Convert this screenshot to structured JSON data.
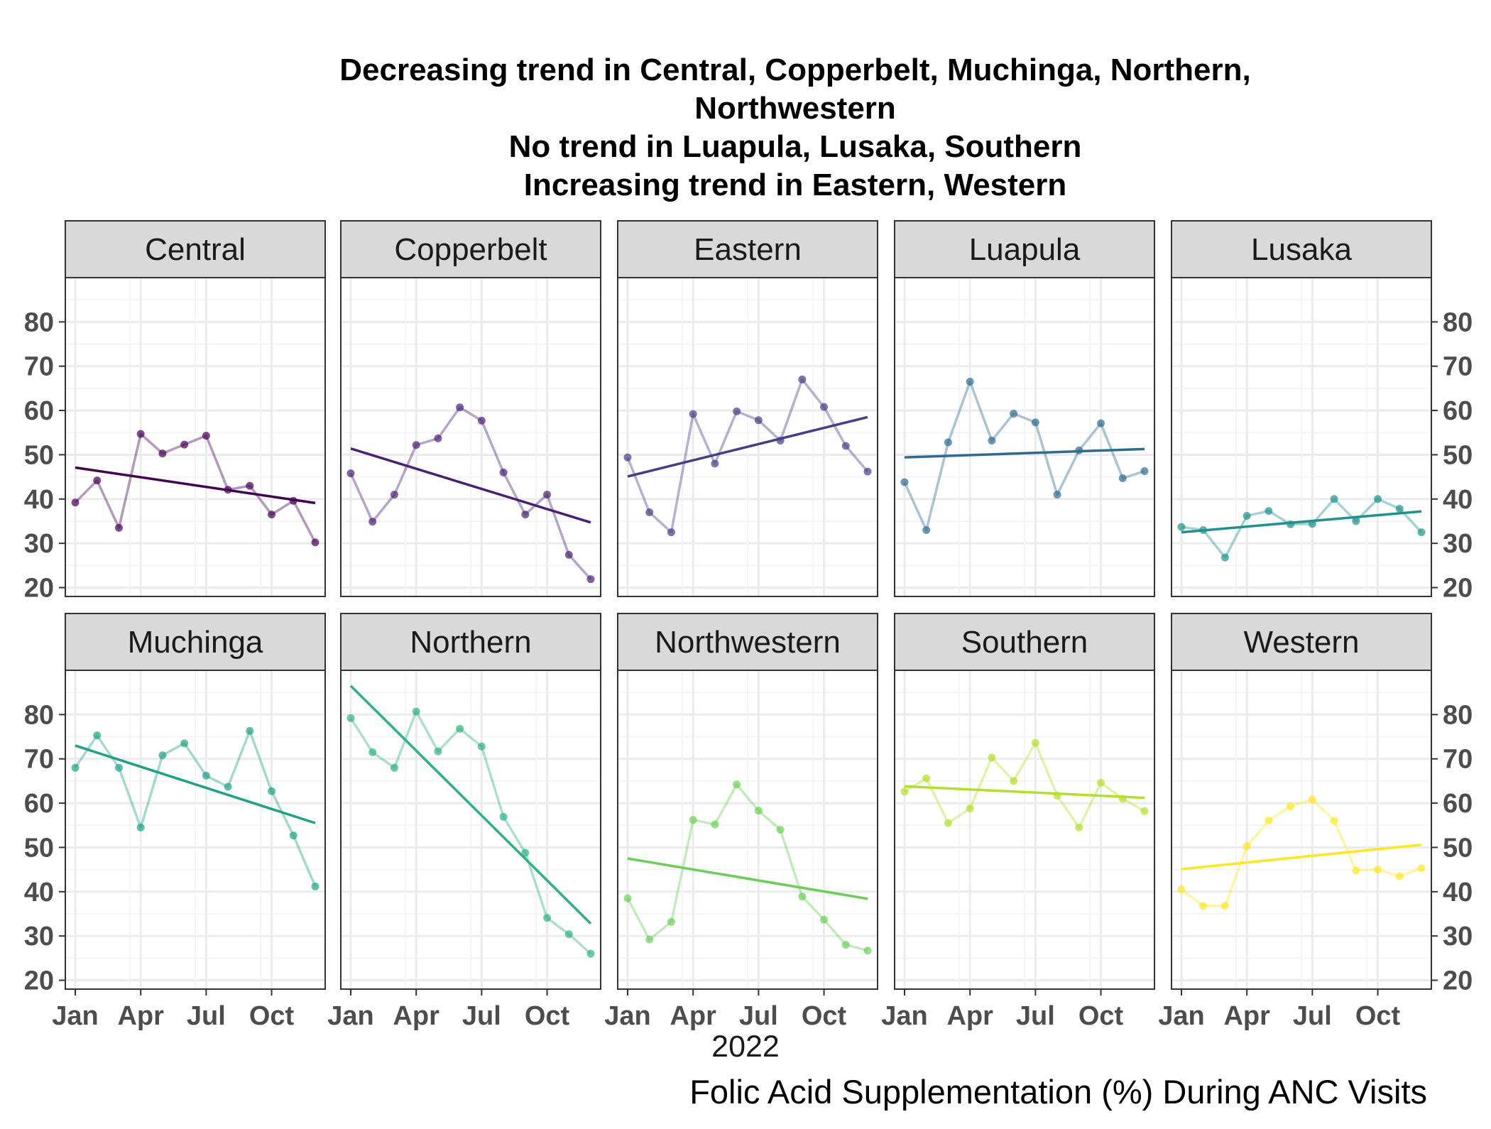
{
  "title_lines": [
    "Decreasing trend in Central, Copperbelt, Muchinga, Northern,",
    "Northwestern",
    "No trend in Luapula, Lusaka, Southern",
    "Increasing trend in Eastern, Western"
  ],
  "caption": "Folic Acid Supplementation (%) During ANC Visits",
  "chart_data": {
    "type": "line",
    "title": "Decreasing trend in Central, Copperbelt, Muchinga, Northern, Northwestern / No trend in Luapula, Lusaka, Southern / Increasing trend in Eastern, Western",
    "xlabel": "2022",
    "ylabel": "",
    "x": [
      "2022-01",
      "2022-02",
      "2022-03",
      "2022-04",
      "2022-05",
      "2022-06",
      "2022-07",
      "2022-08",
      "2022-09",
      "2022-10",
      "2022-11",
      "2022-12"
    ],
    "x_tick_labels": [
      "Jan",
      "Apr",
      "Jul",
      "Oct"
    ],
    "x_tick_months": [
      1,
      4,
      7,
      10
    ],
    "ylim": [
      18,
      90
    ],
    "y_ticks": [
      20,
      30,
      40,
      50,
      60,
      70,
      80
    ],
    "grid": true,
    "layout": "facets, 2 rows x 5 columns",
    "panels": [
      {
        "name": "Central",
        "color": "#440154",
        "values": [
          39.2,
          44.2,
          33.5,
          54.7,
          50.3,
          52.3,
          54.3,
          42.1,
          43.0,
          36.5,
          39.6,
          30.2
        ],
        "trend": [
          47.1,
          39.1
        ]
      },
      {
        "name": "Copperbelt",
        "color": "#482173",
        "values": [
          45.8,
          34.9,
          41.0,
          52.2,
          53.7,
          60.7,
          57.7,
          46.0,
          36.5,
          41.0,
          27.4,
          21.9
        ],
        "trend": [
          51.4,
          34.7
        ]
      },
      {
        "name": "Eastern",
        "color": "#433E85",
        "values": [
          49.4,
          37.0,
          32.5,
          59.2,
          48.0,
          59.8,
          57.8,
          53.2,
          67.0,
          60.8,
          52.0,
          46.2
        ],
        "trend": [
          45.1,
          58.5
        ]
      },
      {
        "name": "Luapula",
        "color": "#2F6B8E",
        "values": [
          43.8,
          33.0,
          52.8,
          66.5,
          53.2,
          59.3,
          57.3,
          41.0,
          51.0,
          57.1,
          44.7,
          46.3
        ],
        "trend": [
          49.4,
          51.3
        ]
      },
      {
        "name": "Lusaka",
        "color": "#21918C",
        "values": [
          33.7,
          33.0,
          26.8,
          36.2,
          37.3,
          34.3,
          34.4,
          40.0,
          35.0,
          40.0,
          37.8,
          32.5
        ],
        "trend": [
          32.5,
          37.2
        ]
      },
      {
        "name": "Muchinga",
        "color": "#1FA187",
        "values": [
          68.0,
          75.3,
          68.0,
          54.5,
          70.8,
          73.5,
          66.2,
          63.7,
          76.3,
          62.7,
          52.7,
          41.2
        ],
        "trend": [
          73.0,
          55.5
        ]
      },
      {
        "name": "Northern",
        "color": "#2DB27D",
        "values": [
          79.2,
          71.5,
          68.0,
          80.7,
          71.7,
          76.8,
          72.8,
          56.9,
          48.8,
          34.1,
          30.4,
          26.0
        ],
        "trend": [
          86.5,
          32.8
        ]
      },
      {
        "name": "Northwestern",
        "color": "#6CCE59",
        "values": [
          38.5,
          29.2,
          33.2,
          56.2,
          55.2,
          64.2,
          58.3,
          54.0,
          38.9,
          33.7,
          28.0,
          26.7
        ],
        "trend": [
          47.5,
          38.4
        ]
      },
      {
        "name": "Southern",
        "color": "#B4DE2C",
        "values": [
          62.6,
          65.6,
          55.5,
          58.8,
          70.3,
          65.0,
          73.6,
          61.7,
          54.5,
          64.6,
          61.0,
          58.2
        ],
        "trend": [
          63.8,
          61.2
        ]
      },
      {
        "name": "Western",
        "color": "#FDE725",
        "values": [
          40.5,
          36.8,
          36.8,
          50.3,
          56.1,
          59.3,
          60.8,
          56.0,
          44.8,
          45.0,
          43.5,
          45.3
        ],
        "trend": [
          45.1,
          50.6
        ]
      }
    ]
  }
}
